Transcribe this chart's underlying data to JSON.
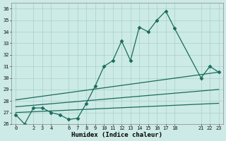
{
  "xlabel": "Humidex (Indice chaleur)",
  "ylabel": "",
  "background_color": "#cceae6",
  "grid_color": "#aacfcb",
  "line_color": "#1a6b5a",
  "xlim": [
    -0.5,
    23.5
  ],
  "ylim": [
    26,
    36.5
  ],
  "yticks": [
    26,
    27,
    28,
    29,
    30,
    31,
    32,
    33,
    34,
    35,
    36
  ],
  "xticks": [
    0,
    2,
    3,
    4,
    6,
    7,
    8,
    9,
    10,
    11,
    12,
    13,
    14,
    15,
    16,
    17,
    18,
    21,
    22,
    23
  ],
  "series": [
    {
      "x": [
        0,
        1,
        2,
        3,
        4,
        5,
        6,
        7,
        8,
        9,
        10,
        11,
        12,
        13,
        14,
        15,
        16,
        17,
        18,
        21,
        22,
        23
      ],
      "y": [
        26.8,
        26.0,
        27.4,
        27.4,
        27.0,
        26.8,
        26.4,
        26.5,
        27.8,
        29.3,
        31.0,
        31.5,
        33.2,
        31.5,
        34.4,
        34.0,
        35.0,
        35.8,
        34.3,
        30.0,
        31.0,
        30.5
      ],
      "marker": "D",
      "markersize": 2.5
    },
    {
      "x": [
        0,
        23
      ],
      "y": [
        27.0,
        27.8
      ],
      "marker": null,
      "markersize": 0
    },
    {
      "x": [
        0,
        23
      ],
      "y": [
        27.5,
        29.0
      ],
      "marker": null,
      "markersize": 0
    },
    {
      "x": [
        0,
        23
      ],
      "y": [
        28.1,
        30.5
      ],
      "marker": null,
      "markersize": 0
    }
  ],
  "linewidth": 0.9
}
